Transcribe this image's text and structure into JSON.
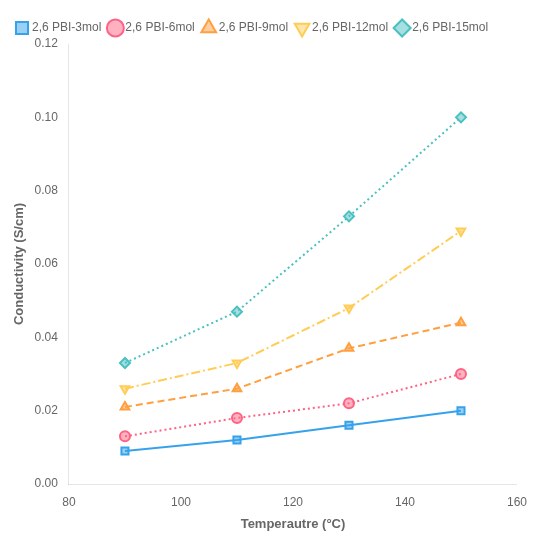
{
  "chart_data": {
    "type": "line",
    "x": [
      90,
      110,
      130,
      150
    ],
    "series": [
      {
        "name": "2,6 PBI-3mol",
        "values": [
          0.009,
          0.012,
          0.016,
          0.02
        ],
        "marker": "square",
        "line_style": "solid"
      },
      {
        "name": "2,6 PBI-6mol",
        "values": [
          0.013,
          0.018,
          0.022,
          0.03
        ],
        "marker": "circle",
        "line_style": "dotted"
      },
      {
        "name": "2,6 PBI-9mol",
        "values": [
          0.021,
          0.026,
          0.037,
          0.044
        ],
        "marker": "triangle-up",
        "line_style": "dashed"
      },
      {
        "name": "2,6 PBI-12mol",
        "values": [
          0.026,
          0.033,
          0.048,
          0.069
        ],
        "marker": "triangle-down",
        "line_style": "dashdot"
      },
      {
        "name": "2,6 PBI-15mol",
        "values": [
          0.033,
          0.047,
          0.073,
          0.1
        ],
        "marker": "diamond",
        "line_style": "dotted"
      }
    ],
    "x_label": "Temperautre (°C)",
    "y_label": "Conductivity (S/cm)",
    "xlim": [
      80,
      160
    ],
    "ylim": [
      0,
      0.12
    ],
    "xticks": [
      80,
      100,
      120,
      140,
      160
    ],
    "yticks": [
      {
        "value": 0.0,
        "label": "0.00"
      },
      {
        "value": 0.02,
        "label": "0.02"
      },
      {
        "value": 0.04,
        "label": "0.04"
      },
      {
        "value": 0.06,
        "label": "0.06"
      },
      {
        "value": 0.08,
        "label": "0.08"
      },
      {
        "value": 0.1,
        "label": "0.10"
      },
      {
        "value": 0.12,
        "label": "0.12"
      }
    ],
    "grid": false,
    "legend": "upper left"
  }
}
